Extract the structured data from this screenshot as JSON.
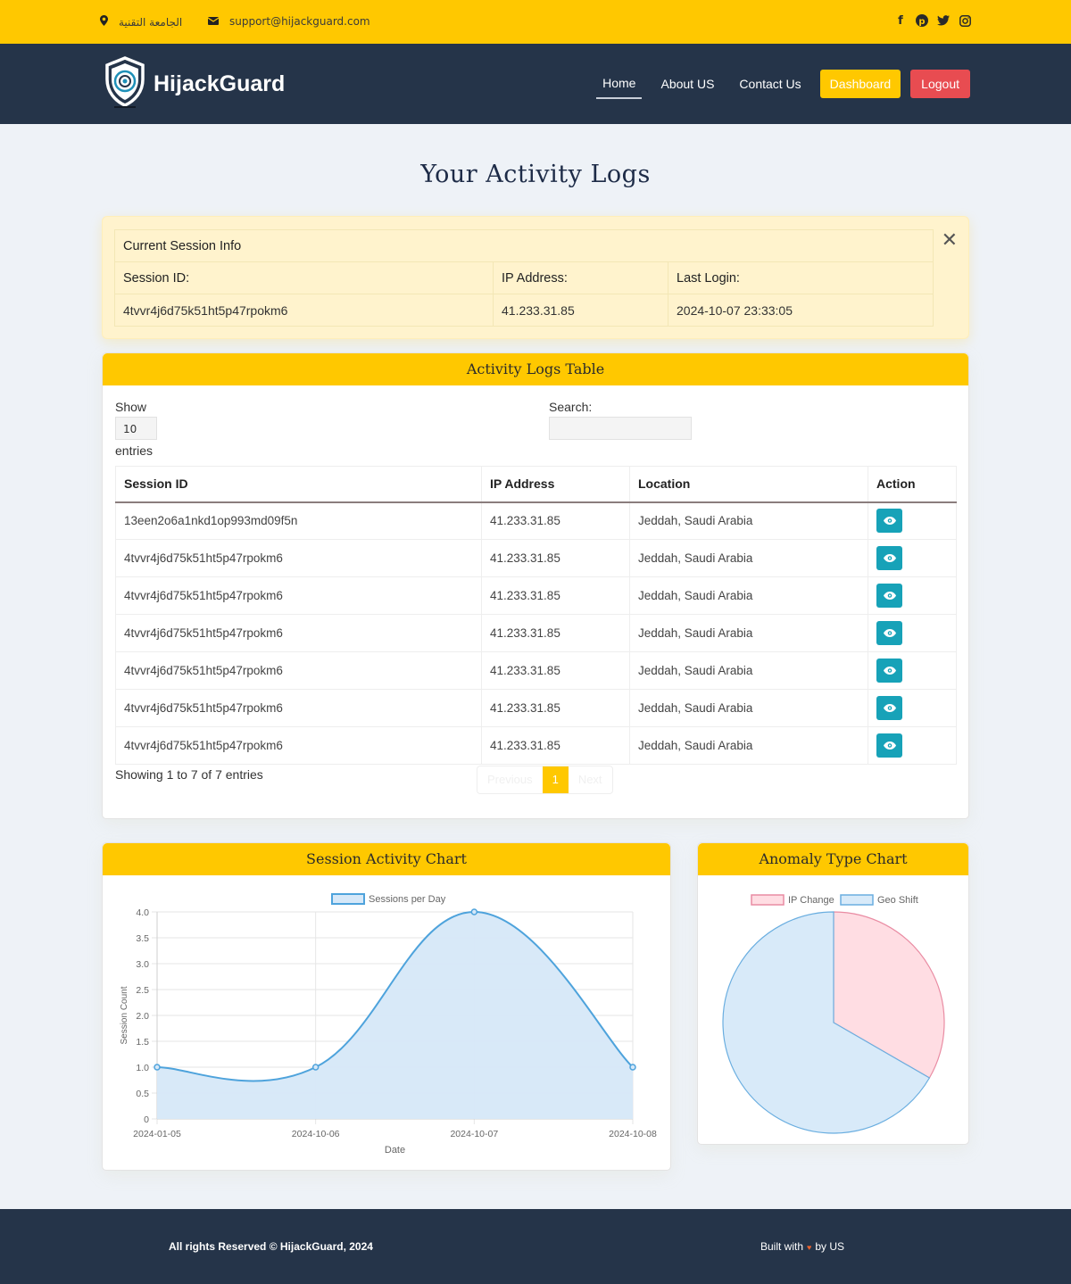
{
  "topbar": {
    "location": "الجامعة التقنية",
    "email": "support@hijackguard.com",
    "social_icons": [
      "facebook-icon",
      "pinterest-icon",
      "twitter-icon",
      "instagram-icon"
    ]
  },
  "nav": {
    "brand": "HijackGuard",
    "links": [
      "Home",
      "About US",
      "Contact Us"
    ],
    "dashboard": "Dashboard",
    "logout": "Logout"
  },
  "page_title": "Your Activity Logs",
  "session": {
    "heading": "Current Session Info",
    "labels": {
      "session_id": "Session ID:",
      "ip": "IP Address:",
      "last_login": "Last Login:"
    },
    "values": {
      "session_id": "4tvvr4j6d75k51ht5p47rpokm6",
      "ip": "41.233.31.85",
      "last_login": "2024-10-07 23:33:05"
    }
  },
  "logs": {
    "title": "Activity Logs Table",
    "show_label": "Show",
    "show_value": "10",
    "entries_label": "entries",
    "search_label": "Search:",
    "columns": [
      "Session ID",
      "IP Address",
      "Location",
      "Action"
    ],
    "rows": [
      [
        "13een2o6a1nkd1op993md09f5n",
        "41.233.31.85",
        "Jeddah, Saudi Arabia"
      ],
      [
        "4tvvr4j6d75k51ht5p47rpokm6",
        "41.233.31.85",
        "Jeddah, Saudi Arabia"
      ],
      [
        "4tvvr4j6d75k51ht5p47rpokm6",
        "41.233.31.85",
        "Jeddah, Saudi Arabia"
      ],
      [
        "4tvvr4j6d75k51ht5p47rpokm6",
        "41.233.31.85",
        "Jeddah, Saudi Arabia"
      ],
      [
        "4tvvr4j6d75k51ht5p47rpokm6",
        "41.233.31.85",
        "Jeddah, Saudi Arabia"
      ],
      [
        "4tvvr4j6d75k51ht5p47rpokm6",
        "41.233.31.85",
        "Jeddah, Saudi Arabia"
      ],
      [
        "4tvvr4j6d75k51ht5p47rpokm6",
        "41.233.31.85",
        "Jeddah, Saudi Arabia"
      ]
    ],
    "showing_text": "Showing 1 to 7 of 7 entries",
    "pager": {
      "previous": "Previous",
      "current": "1",
      "next": "Next"
    }
  },
  "charts": {
    "session_title": "Session Activity Chart",
    "anomaly_title": "Anomaly Type Chart"
  },
  "chart_data": [
    {
      "type": "line",
      "title": "",
      "x": [
        "2024-01-05",
        "2024-10-06",
        "2024-10-07",
        "2024-10-08"
      ],
      "series": [
        {
          "name": "Sessions per Day",
          "values": [
            1,
            1,
            4,
            1
          ]
        }
      ],
      "xlabel": "Date",
      "ylabel": "Session Count",
      "ylim": [
        0,
        4
      ],
      "yticks": [
        "0",
        "0.5",
        "1.0",
        "1.5",
        "2.0",
        "2.5",
        "3.0",
        "3.5",
        "4.0"
      ],
      "grid": true,
      "legend": "top",
      "fill": true,
      "colors": {
        "line": "#4ea3dc",
        "fill": "#d6e8f8"
      }
    },
    {
      "type": "pie",
      "title": "",
      "categories": [
        "IP Change",
        "Geo Shift"
      ],
      "values": [
        1,
        2
      ],
      "legend": "top",
      "colors": {
        "IP Change": "#ffdde3",
        "Geo Shift": "#d8eaf9",
        "IP Change_border": "#e98ca3",
        "Geo Shift_border": "#6aaee0"
      }
    }
  ],
  "footer": {
    "left": "All rights Reserved © HijackGuard, 2024",
    "built_with": "Built with",
    "by": "by US"
  }
}
